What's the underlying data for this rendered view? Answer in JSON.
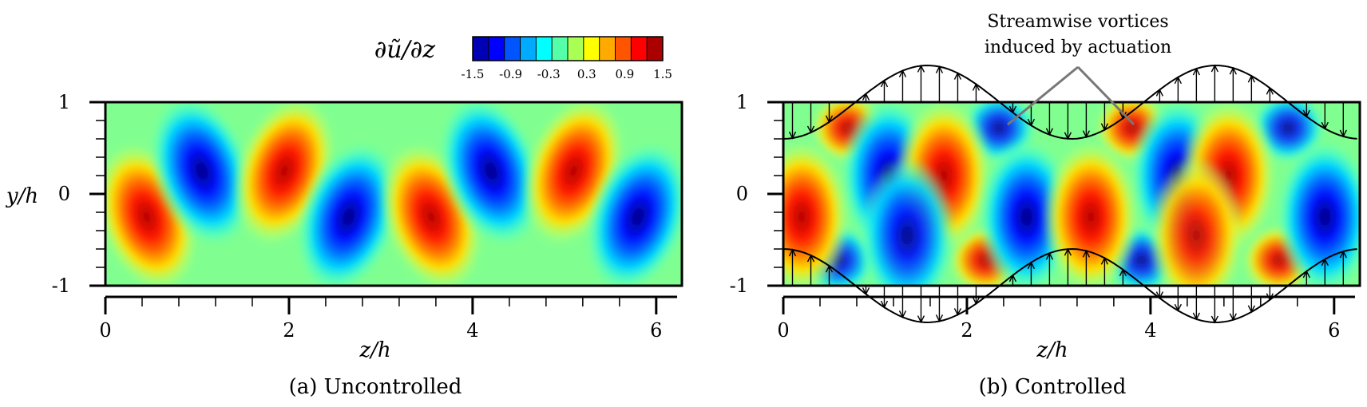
{
  "colorbar": {
    "label": "∂ũ/∂z",
    "ticks": [
      "-1.5",
      "-0.9",
      "-0.3",
      "0.3",
      "0.9",
      "1.5"
    ],
    "range": [
      -1.5,
      1.5
    ],
    "levels": 12,
    "colormap": [
      "#00008f",
      "#0000ff",
      "#0080ff",
      "#00ffff",
      "#80ff80",
      "#ffff00",
      "#ff8000",
      "#ff0000",
      "#800000"
    ]
  },
  "annotation": {
    "line1": "Streamwise vortices",
    "line2": "induced by actuation"
  },
  "chart_data": [
    {
      "type": "heatmap",
      "caption": "(a) Uncontrolled",
      "xlabel": "z/h",
      "ylabel": "y/h",
      "xlim": [
        0,
        6.28
      ],
      "ylim": [
        -1,
        1
      ],
      "xticks": [
        "0",
        "2",
        "4",
        "6"
      ],
      "yticks": [
        "1",
        "0",
        "-1"
      ],
      "blobs": [
        {
          "z": 0.45,
          "y": -0.25,
          "value": 1.5
        },
        {
          "z": 1.05,
          "y": 0.25,
          "value": -1.5
        },
        {
          "z": 1.95,
          "y": 0.25,
          "value": 1.5
        },
        {
          "z": 2.65,
          "y": -0.25,
          "value": -1.5
        },
        {
          "z": 3.55,
          "y": -0.25,
          "value": 1.5
        },
        {
          "z": 4.2,
          "y": 0.25,
          "value": -1.5
        },
        {
          "z": 5.1,
          "y": 0.25,
          "value": 1.5
        },
        {
          "z": 5.8,
          "y": -0.25,
          "value": -1.5
        }
      ]
    },
    {
      "type": "heatmap",
      "caption": "(b) Controlled",
      "xlabel": "z/h",
      "ylabel": "",
      "xlim": [
        0,
        6.28
      ],
      "ylim": [
        -1,
        1
      ],
      "xticks": [
        "0",
        "2",
        "4",
        "6"
      ],
      "yticks": [
        "1",
        "0",
        "-1"
      ],
      "actuation": "v = 0.5 cos(2z) at the top and bottom walls",
      "blobs": [
        {
          "z": 0.7,
          "y": 0.72,
          "value": 1.4
        },
        {
          "z": 2.35,
          "y": 0.72,
          "value": -1.3
        },
        {
          "z": 3.8,
          "y": 0.72,
          "value": 1.4
        },
        {
          "z": 5.5,
          "y": 0.72,
          "value": -1.3
        },
        {
          "z": 0.6,
          "y": -0.72,
          "value": -1.3
        },
        {
          "z": 2.2,
          "y": -0.72,
          "value": 1.4
        },
        {
          "z": 3.9,
          "y": -0.72,
          "value": -1.3
        },
        {
          "z": 5.4,
          "y": -0.72,
          "value": 1.4
        },
        {
          "z": 1.15,
          "y": 0.2,
          "value": -1.5
        },
        {
          "z": 1.75,
          "y": 0.2,
          "value": 1.5
        },
        {
          "z": 4.3,
          "y": 0.2,
          "value": -1.5
        },
        {
          "z": 4.85,
          "y": 0.2,
          "value": 1.5
        },
        {
          "z": 0.2,
          "y": -0.25,
          "value": 1.5
        },
        {
          "z": 1.35,
          "y": -0.45,
          "value": -1.4
        },
        {
          "z": 2.65,
          "y": -0.25,
          "value": -1.5
        },
        {
          "z": 3.35,
          "y": -0.25,
          "value": 1.5
        },
        {
          "z": 4.5,
          "y": -0.45,
          "value": 1.4
        },
        {
          "z": 5.9,
          "y": -0.25,
          "value": -1.5
        }
      ]
    }
  ]
}
